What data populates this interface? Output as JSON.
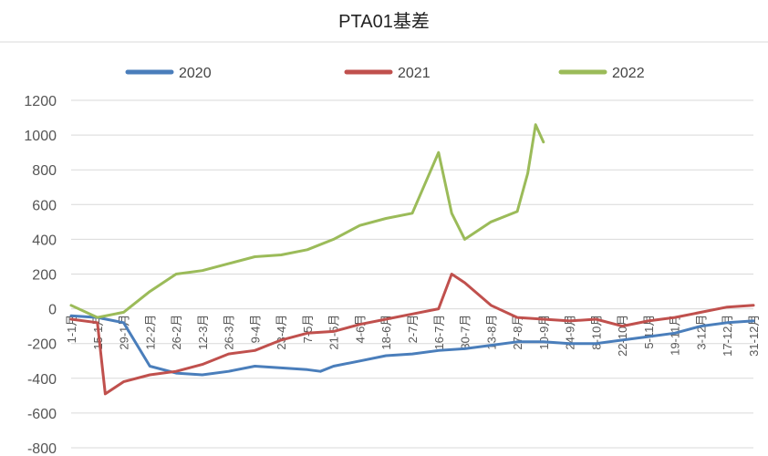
{
  "chart_data": {
    "type": "line",
    "title": "PTA01基差",
    "xlabel": "",
    "ylabel": "",
    "ylim": [
      -800,
      1200
    ],
    "yticks": [
      1200,
      1000,
      800,
      600,
      400,
      200,
      0,
      -200,
      -400,
      -600,
      -800
    ],
    "grid": "horizontal",
    "legend_position": "top",
    "categories": [
      "1-1月",
      "15-1月",
      "29-1月",
      "12-2月",
      "26-2月",
      "12-3月",
      "26-3月",
      "9-4月",
      "23-4月",
      "7-5月",
      "21-5月",
      "4-6月",
      "18-6月",
      "2-7月",
      "16-7月",
      "30-7月",
      "13-8月",
      "27-8月",
      "10-9月",
      "24-9月",
      "8-10月",
      "22-10月",
      "5-11月",
      "19-11月",
      "3-12月",
      "17-12月",
      "31-12月"
    ],
    "series": [
      {
        "name": "2020",
        "color": "#4a7ebb",
        "x": [
          0,
          1,
          2,
          3,
          4,
          5,
          6,
          7,
          8,
          9,
          9.5,
          10,
          11,
          12,
          13,
          14,
          15,
          16,
          17,
          18,
          19,
          20,
          21,
          22,
          23,
          24,
          25,
          26
        ],
        "values": [
          -40,
          -50,
          -80,
          -330,
          -370,
          -380,
          -360,
          -330,
          -340,
          -350,
          -360,
          -330,
          -300,
          -270,
          -260,
          -240,
          -230,
          -210,
          -190,
          -190,
          -200,
          -200,
          -180,
          -160,
          -140,
          -100,
          -80,
          -70
        ]
      },
      {
        "name": "2021",
        "color": "#c0504d",
        "x": [
          0,
          1,
          1.3,
          2,
          3,
          4,
          5,
          6,
          7,
          8,
          9,
          10,
          11,
          12,
          13,
          14,
          14.5,
          15,
          16,
          17,
          18,
          19,
          20,
          21,
          22,
          23,
          24,
          25,
          26
        ],
        "values": [
          -60,
          -80,
          -490,
          -420,
          -380,
          -360,
          -320,
          -260,
          -240,
          -180,
          -140,
          -130,
          -90,
          -60,
          -30,
          0,
          200,
          150,
          20,
          -50,
          -60,
          -70,
          -60,
          -100,
          -70,
          -50,
          -20,
          10,
          20
        ]
      },
      {
        "name": "2022",
        "color": "#9bbb59",
        "x": [
          0,
          1,
          2,
          3,
          4,
          5,
          6,
          7,
          8,
          9,
          10,
          11,
          12,
          13,
          14,
          14.5,
          15,
          16,
          17,
          17.4,
          17.7,
          18
        ],
        "values": [
          20,
          -50,
          -20,
          100,
          200,
          220,
          260,
          300,
          310,
          340,
          400,
          480,
          520,
          550,
          900,
          550,
          400,
          500,
          560,
          780,
          1060,
          960
        ]
      }
    ]
  }
}
